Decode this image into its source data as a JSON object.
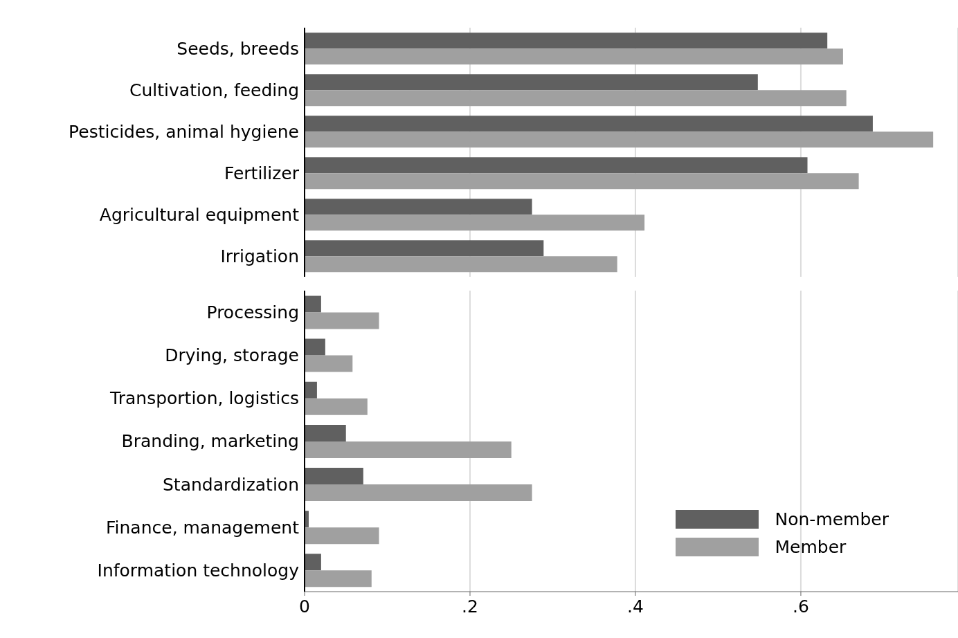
{
  "chart_data": [
    {
      "type": "bar",
      "orientation": "horizontal",
      "categories": [
        "Seeds, breeds",
        "Cultivation, feeding",
        "Pesticides, animal hygiene",
        "Fertilizer",
        "Agricultural equipment",
        "Irrigation"
      ],
      "series": [
        {
          "color": "#606060",
          "values": [
            0.632,
            0.548,
            0.687,
            0.608,
            0.275,
            0.289
          ]
        },
        {
          "color": "#a0a0a0",
          "values": [
            0.651,
            0.655,
            0.76,
            0.67,
            0.411,
            0.378
          ]
        }
      ],
      "xlim": [
        0,
        0.79
      ],
      "xticks": [
        {
          "value": 0,
          "label": null
        },
        {
          "value": 0.2,
          "label": null
        },
        {
          "value": 0.4,
          "label": null
        },
        {
          "value": 0.6,
          "label": null
        }
      ],
      "grid": "x",
      "tick_labels": "y"
    },
    {
      "type": "bar",
      "orientation": "horizontal",
      "categories": [
        "Processing",
        "Drying, storage",
        "Transportion, logistics",
        "Branding, marketing",
        "Standardization",
        "Finance, management",
        "Information technology"
      ],
      "series": [
        {
          "name": "Non-member",
          "color": "#606060",
          "values": [
            0.02,
            0.025,
            0.015,
            0.05,
            0.071,
            0.005,
            0.02
          ]
        },
        {
          "name": "Member",
          "color": "#a0a0a0",
          "values": [
            0.09,
            0.058,
            0.076,
            0.25,
            0.275,
            0.09,
            0.081
          ]
        }
      ],
      "xlim": [
        0,
        0.79
      ],
      "xticks": [
        {
          "value": 0,
          "label": "0"
        },
        {
          "value": 0.2,
          "label": ".2"
        },
        {
          "value": 0.4,
          "label": ".4"
        },
        {
          "value": 0.6,
          "label": ".6"
        }
      ],
      "grid": "x",
      "legend": "bottom right"
    }
  ]
}
